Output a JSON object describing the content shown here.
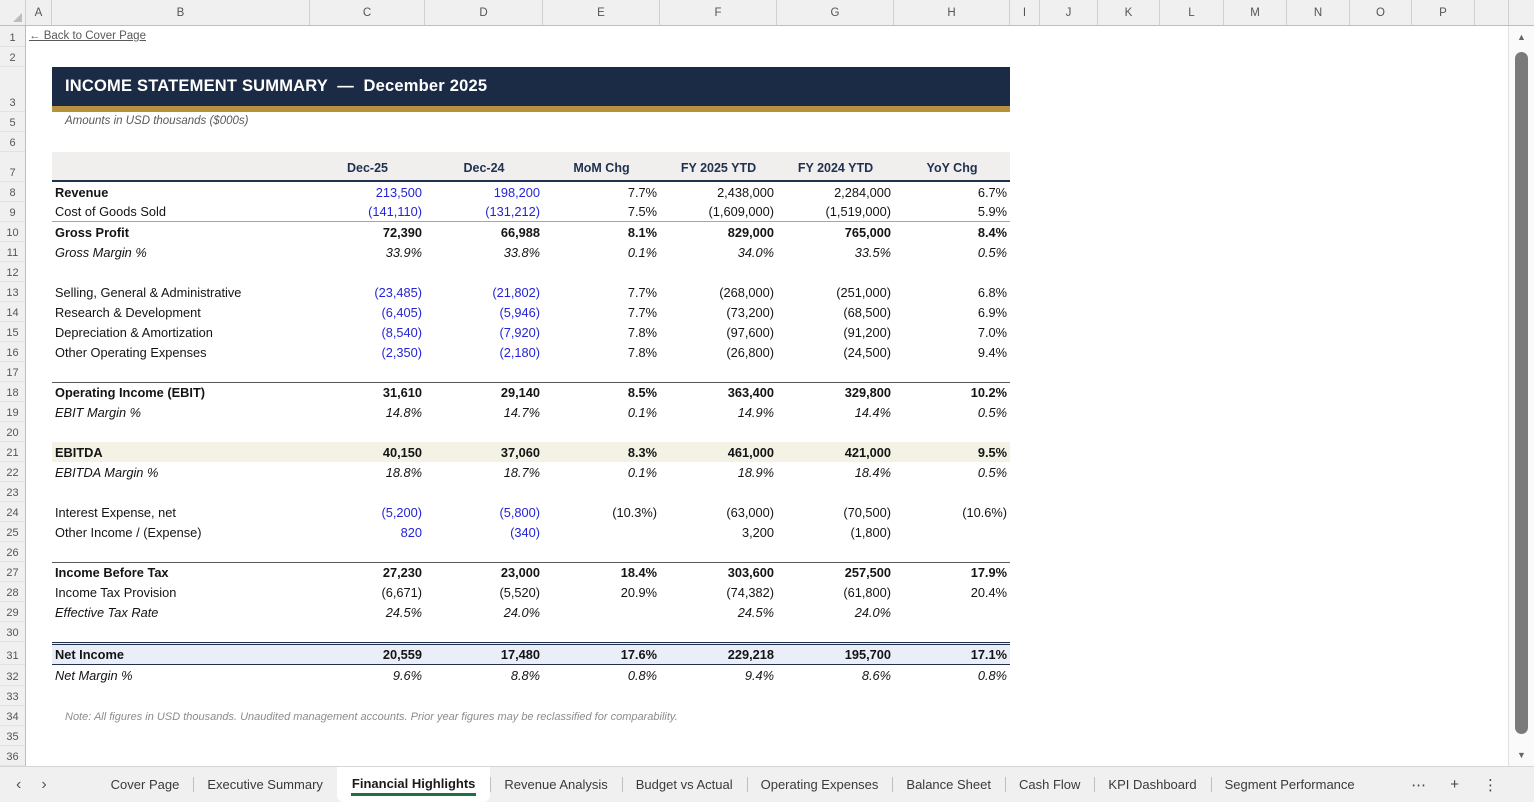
{
  "colors": {
    "banner_navy": "#1c2b45",
    "gold": "#b6923e",
    "input_blue": "#2424d6",
    "tab_green": "#1e7145",
    "header_fill": "#f1efee",
    "ebitda_fill": "#f4f1e5",
    "net_income_fill": "#eaeef8"
  },
  "grid": {
    "columns": [
      "A",
      "B",
      "C",
      "D",
      "E",
      "F",
      "G",
      "H",
      "I",
      "J",
      "K",
      "L",
      "M",
      "N",
      "O",
      "P"
    ],
    "row_numbers": [
      "1",
      "2",
      "3",
      "5",
      "6",
      "7",
      "8",
      "9",
      "10",
      "11",
      "12",
      "13",
      "14",
      "15",
      "16",
      "17",
      "18",
      "19",
      "20",
      "21",
      "22",
      "23",
      "24",
      "25",
      "26",
      "27",
      "28",
      "29",
      "30",
      "31",
      "32",
      "33",
      "34",
      "35",
      "36"
    ]
  },
  "page": {
    "back_link": "← Back to Cover Page",
    "title": "INCOME STATEMENT SUMMARY  —  December 2025",
    "subtitle": "Amounts in USD thousands ($000s)",
    "note": "Note: All figures in USD thousands. Unaudited management accounts. Prior year figures may be reclassified for comparability."
  },
  "table": {
    "columns": [
      "Dec-25",
      "Dec-24",
      "MoM Chg",
      "FY 2025 YTD",
      "FY 2024 YTD",
      "YoY Chg"
    ],
    "rows": [
      {
        "label": "Revenue",
        "lbold": true,
        "blue": [
          0,
          1
        ],
        "values": [
          "213,500",
          "198,200",
          "7.7%",
          "2,438,000",
          "2,284,000",
          "6.7%"
        ]
      },
      {
        "label": "Cost of Goods Sold",
        "blue": [
          0,
          1
        ],
        "cls": "bb-thin",
        "values": [
          "(141,110)",
          "(131,212)",
          "7.5%",
          "(1,609,000)",
          "(1,519,000)",
          "5.9%"
        ]
      },
      {
        "label": "Gross Profit",
        "bold": true,
        "values": [
          "72,390",
          "66,988",
          "8.1%",
          "829,000",
          "765,000",
          "8.4%"
        ]
      },
      {
        "label": "Gross Margin %",
        "italic": true,
        "values": [
          "33.9%",
          "33.8%",
          "0.1%",
          "34.0%",
          "33.5%",
          "0.5%"
        ]
      },
      {
        "blank": true
      },
      {
        "label": "Selling, General & Administrative",
        "blue": [
          0,
          1
        ],
        "values": [
          "(23,485)",
          "(21,802)",
          "7.7%",
          "(268,000)",
          "(251,000)",
          "6.8%"
        ]
      },
      {
        "label": "Research & Development",
        "blue": [
          0,
          1
        ],
        "values": [
          "(6,405)",
          "(5,946)",
          "7.7%",
          "(73,200)",
          "(68,500)",
          "6.9%"
        ]
      },
      {
        "label": "Depreciation & Amortization",
        "blue": [
          0,
          1
        ],
        "values": [
          "(8,540)",
          "(7,920)",
          "7.8%",
          "(97,600)",
          "(91,200)",
          "7.0%"
        ]
      },
      {
        "label": "Other Operating Expenses",
        "blue": [
          0,
          1
        ],
        "values": [
          "(2,350)",
          "(2,180)",
          "7.8%",
          "(26,800)",
          "(24,500)",
          "9.4%"
        ]
      },
      {
        "blank": true
      },
      {
        "label": "Operating Income (EBIT)",
        "bold": true,
        "cls": "bt-section",
        "values": [
          "31,610",
          "29,140",
          "8.5%",
          "363,400",
          "329,800",
          "10.2%"
        ]
      },
      {
        "label": "EBIT Margin %",
        "italic": true,
        "values": [
          "14.8%",
          "14.7%",
          "0.1%",
          "14.9%",
          "14.4%",
          "0.5%"
        ]
      },
      {
        "blank": true
      },
      {
        "label": "EBITDA",
        "bold": true,
        "cls": "fill-cream",
        "values": [
          "40,150",
          "37,060",
          "8.3%",
          "461,000",
          "421,000",
          "9.5%"
        ]
      },
      {
        "label": "EBITDA Margin %",
        "italic": true,
        "values": [
          "18.8%",
          "18.7%",
          "0.1%",
          "18.9%",
          "18.4%",
          "0.5%"
        ]
      },
      {
        "blank": true
      },
      {
        "label": "Interest Expense, net",
        "blue": [
          0,
          1
        ],
        "values": [
          "(5,200)",
          "(5,800)",
          "(10.3%)",
          "(63,000)",
          "(70,500)",
          "(10.6%)"
        ]
      },
      {
        "label": "Other Income / (Expense)",
        "blue": [
          0,
          1
        ],
        "values": [
          "820",
          "(340)",
          "",
          "3,200",
          "(1,800)",
          ""
        ]
      },
      {
        "blank": true
      },
      {
        "label": "Income Before Tax",
        "bold": true,
        "cls": "bt-section",
        "values": [
          "27,230",
          "23,000",
          "18.4%",
          "303,600",
          "257,500",
          "17.9%"
        ]
      },
      {
        "label": "Income Tax Provision",
        "values": [
          "(6,671)",
          "(5,520)",
          "20.9%",
          "(74,382)",
          "(61,800)",
          "20.4%"
        ]
      },
      {
        "label": "Effective Tax Rate",
        "italic": true,
        "values": [
          "24.5%",
          "24.0%",
          "",
          "24.5%",
          "24.0%",
          ""
        ]
      },
      {
        "blank": true
      },
      {
        "label": "Net Income",
        "bold": true,
        "cls": "net",
        "values": [
          "20,559",
          "17,480",
          "17.6%",
          "229,218",
          "195,700",
          "17.1%"
        ]
      },
      {
        "label": "Net Margin %",
        "italic": true,
        "cls": "h21",
        "values": [
          "9.6%",
          "8.8%",
          "0.8%",
          "9.4%",
          "8.6%",
          "0.8%"
        ]
      }
    ]
  },
  "sheet_tabs": {
    "tabs": [
      "Cover Page",
      "Executive Summary",
      "Financial Highlights",
      "Revenue Analysis",
      "Budget vs Actual",
      "Operating Expenses",
      "Balance Sheet",
      "Cash Flow",
      "KPI Dashboard",
      "Segment Performance"
    ],
    "active_index": 2
  },
  "icons": {
    "nav_back": "‹",
    "nav_forward": "›",
    "more_tabs": "⋯",
    "add_sheet": "+",
    "tab_menu": "⋮",
    "scroll_up": "▲",
    "scroll_down": "▼"
  }
}
